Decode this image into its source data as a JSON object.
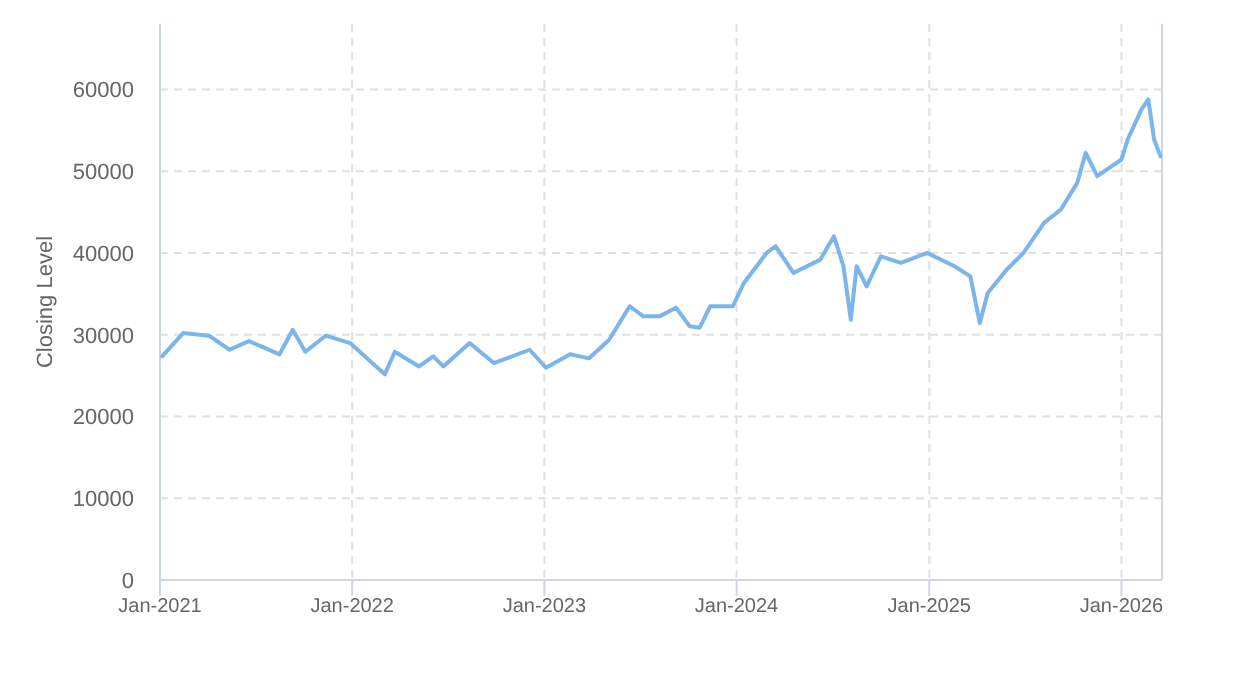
{
  "chart_data": {
    "type": "line",
    "ylabel": "Closing Level",
    "grid": true,
    "marker": "none",
    "line_style": "solid",
    "xlim": [
      "2021-01-01",
      "2026-03-19"
    ],
    "xticks": [
      {
        "value": "2021-01-01",
        "label": "Jan-2021"
      },
      {
        "value": "2022-01-01",
        "label": "Jan-2022"
      },
      {
        "value": "2023-01-01",
        "label": "Jan-2023"
      },
      {
        "value": "2024-01-01",
        "label": "Jan-2024"
      },
      {
        "value": "2025-01-01",
        "label": "Jan-2025"
      },
      {
        "value": "2026-01-01",
        "label": "Jan-2026"
      }
    ],
    "ylim": [
      0,
      68000
    ],
    "yticks": [
      0,
      10000,
      20000,
      30000,
      40000,
      50000,
      60000
    ],
    "x": [
      "2021-01-05",
      "2021-02-14",
      "2021-04-04",
      "2021-05-13",
      "2021-06-19",
      "2021-08-16",
      "2021-09-10",
      "2021-10-04",
      "2021-11-12",
      "2021-12-28",
      "2022-03-04",
      "2022-03-23",
      "2022-05-08",
      "2022-06-04",
      "2022-06-23",
      "2022-08-12",
      "2022-09-27",
      "2022-12-04",
      "2023-01-04",
      "2023-02-19",
      "2023-03-27",
      "2023-05-04",
      "2023-06-12",
      "2023-07-08",
      "2023-08-08",
      "2023-09-08",
      "2023-10-04",
      "2023-10-23",
      "2023-11-12",
      "2023-12-25",
      "2024-01-15",
      "2024-02-27",
      "2024-03-15",
      "2024-04-18",
      "2024-06-08",
      "2024-07-04",
      "2024-07-22",
      "2024-08-05",
      "2024-08-16",
      "2024-09-04",
      "2024-10-01",
      "2024-11-08",
      "2024-12-28",
      "2025-02-18",
      "2025-03-20",
      "2025-04-07",
      "2025-04-22",
      "2025-05-28",
      "2025-06-29",
      "2025-08-07",
      "2025-09-08",
      "2025-10-09",
      "2025-10-25",
      "2025-11-16",
      "2026-01-01",
      "2026-01-13",
      "2026-02-08",
      "2026-02-21",
      "2026-03-04",
      "2026-03-16"
    ],
    "series": [
      {
        "color": "#7cb5ec",
        "values": [
          27350,
          30200,
          29880,
          28160,
          29220,
          27600,
          30600,
          27920,
          29880,
          28980,
          25150,
          27920,
          26120,
          27350,
          26120,
          28980,
          26530,
          28160,
          25960,
          27600,
          27110,
          29390,
          33480,
          32250,
          32250,
          33310,
          31030,
          30860,
          33480,
          33480,
          36330,
          40000,
          40820,
          37550,
          39180,
          42040,
          38370,
          31840,
          38370,
          35920,
          39590,
          38780,
          40000,
          38370,
          37140,
          31430,
          35100,
          37960,
          40000,
          43670,
          45310,
          48570,
          52240,
          49390,
          51430,
          53880,
          57550,
          58780,
          53880,
          51840
        ]
      }
    ]
  }
}
